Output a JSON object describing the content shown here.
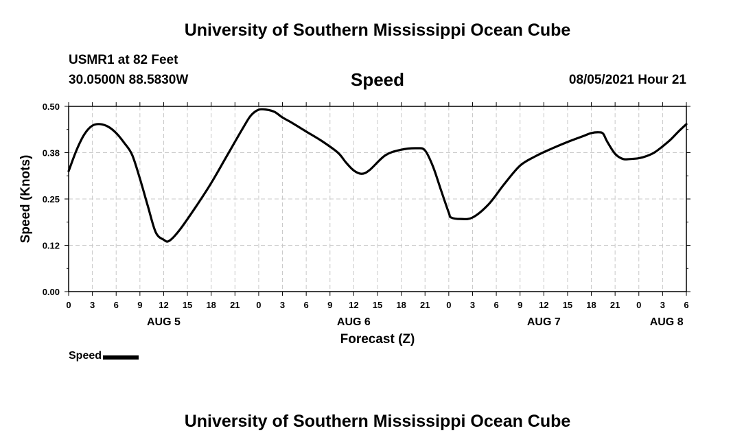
{
  "header": {
    "title": "University of Southern Mississippi Ocean Cube",
    "station": "USMR1 at 82 Feet",
    "coordinates": "30.0500N  88.5830W",
    "plot_title": "Speed",
    "timestamp": "08/05/2021 Hour 21"
  },
  "footer": {
    "title": "University of Southern Mississippi Ocean Cube"
  },
  "legend": {
    "label": "Speed",
    "color": "#000000"
  },
  "chart_data": {
    "type": "line",
    "title": "Speed",
    "xlabel": "Forecast (Z)",
    "ylabel": "Speed (Knots)",
    "xlim": [
      0,
      78
    ],
    "ylim": [
      0,
      0.5
    ],
    "grid": true,
    "legend_position": "bottom-left",
    "y_ticks": [
      "0.00",
      "0.12",
      "0.25",
      "0.38",
      "0.50"
    ],
    "y_tick_values": [
      0,
      0.125,
      0.25,
      0.375,
      0.5
    ],
    "x_ticks": [
      0,
      3,
      6,
      9,
      12,
      15,
      18,
      21,
      24,
      27,
      30,
      33,
      36,
      39,
      42,
      45,
      48,
      51,
      54,
      57,
      60,
      63,
      66,
      69,
      72,
      75,
      78
    ],
    "x_tick_labels": [
      "0",
      "3",
      "6",
      "9",
      "12",
      "15",
      "18",
      "21",
      "0",
      "3",
      "6",
      "9",
      "12",
      "15",
      "18",
      "21",
      "0",
      "3",
      "6",
      "9",
      "12",
      "15",
      "18",
      "21",
      "0",
      "3",
      "6"
    ],
    "date_labels": [
      {
        "label": "AUG 5",
        "x": 12
      },
      {
        "label": "AUG 6",
        "x": 36
      },
      {
        "label": "AUG 7",
        "x": 60
      },
      {
        "label": "AUG 8",
        "x": 75.5
      }
    ],
    "series": [
      {
        "name": "Speed",
        "x": [
          0,
          1,
          2,
          3,
          4,
          5,
          6,
          7,
          8,
          9,
          10,
          11,
          12,
          12.7,
          14,
          16,
          18,
          20,
          22,
          23,
          24,
          25,
          26,
          27,
          28,
          30,
          32,
          34,
          35,
          36,
          37,
          38,
          40,
          42,
          44,
          45,
          46,
          47,
          48,
          48.3,
          49.5,
          51,
          53,
          55,
          57,
          59,
          61,
          63,
          65,
          66,
          67,
          67.5,
          68,
          69,
          70,
          71,
          72,
          73,
          74,
          75,
          76,
          77,
          78
        ],
        "values": [
          0.325,
          0.382,
          0.425,
          0.448,
          0.452,
          0.445,
          0.428,
          0.402,
          0.37,
          0.305,
          0.231,
          0.16,
          0.14,
          0.137,
          0.166,
          0.227,
          0.293,
          0.367,
          0.441,
          0.475,
          0.491,
          0.491,
          0.485,
          0.47,
          0.458,
          0.432,
          0.406,
          0.375,
          0.349,
          0.327,
          0.318,
          0.328,
          0.368,
          0.383,
          0.387,
          0.381,
          0.338,
          0.275,
          0.213,
          0.2,
          0.196,
          0.2,
          0.235,
          0.29,
          0.34,
          0.366,
          0.386,
          0.404,
          0.42,
          0.428,
          0.43,
          0.426,
          0.405,
          0.372,
          0.358,
          0.358,
          0.36,
          0.366,
          0.376,
          0.392,
          0.41,
          0.432,
          0.452
        ]
      }
    ]
  }
}
